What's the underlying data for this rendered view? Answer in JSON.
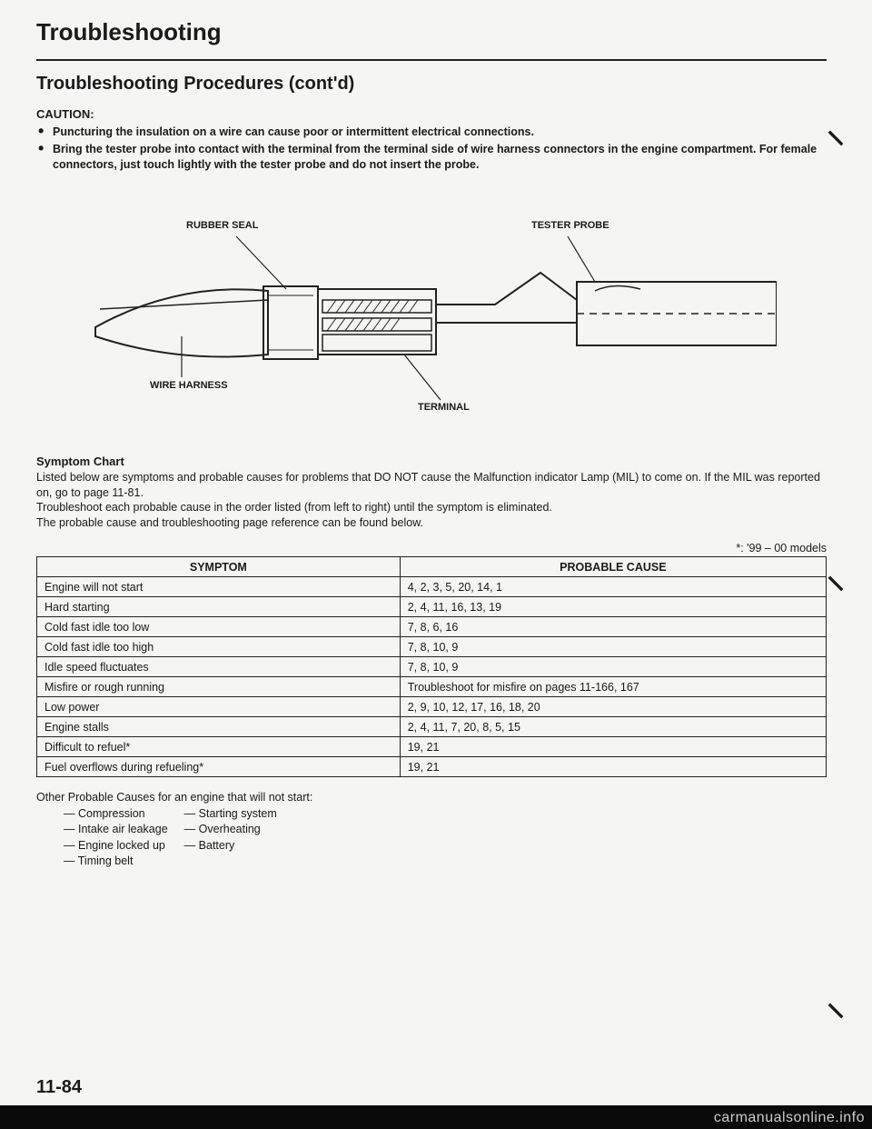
{
  "title": "Troubleshooting",
  "subtitle": "Troubleshooting Procedures (cont'd)",
  "caution_label": "CAUTION:",
  "cautions": [
    "Puncturing the insulation on a wire can cause poor or intermittent electrical connections.",
    "Bring the tester probe into contact with the terminal from the terminal side of wire harness connectors in the engine compartment. For female connectors, just touch lightly with the tester probe and do not insert the probe."
  ],
  "diagram_labels": {
    "rubber_seal": "RUBBER SEAL",
    "tester_probe": "TESTER PROBE",
    "wire_harness": "WIRE HARNESS",
    "terminal": "TERMINAL"
  },
  "symptom_heading": "Symptom Chart",
  "symptom_text": "Listed below are symptoms and probable causes for problems that DO NOT cause the Malfunction indicator Lamp (MIL) to come on. If the MIL was reported on, go to page 11-81.\nTroubleshoot each probable cause in the order listed (from left to right) until the symptom is eliminated.\nThe probable cause and troubleshooting page reference can be found below.",
  "models_note": "*: '99 – 00 models",
  "table": {
    "headers": [
      "SYMPTOM",
      "PROBABLE CAUSE"
    ],
    "rows": [
      [
        "Engine will not start",
        "4, 2, 3, 5, 20, 14, 1"
      ],
      [
        "Hard starting",
        "2, 4, 11, 16, 13, 19"
      ],
      [
        "Cold fast idle too low",
        "7, 8, 6, 16"
      ],
      [
        "Cold fast idle too high",
        "7, 8, 10, 9"
      ],
      [
        "Idle speed fluctuates",
        "7, 8, 10, 9"
      ],
      [
        "Misfire or rough running",
        "Troubleshoot for misfire on pages 11-166, 167"
      ],
      [
        "Low power",
        "2, 9, 10, 12, 17, 16, 18, 20"
      ],
      [
        "Engine stalls",
        "2, 4, 11, 7, 20, 8, 5, 15"
      ],
      [
        "Difficult to refuel*",
        "19, 21"
      ],
      [
        "Fuel overflows during refueling*",
        "19, 21"
      ]
    ]
  },
  "other_causes_heading": "Other Probable Causes for an engine that will not start:",
  "other_causes": {
    "col1": [
      "Compression",
      "Intake air leakage",
      "Engine locked up",
      "Timing belt"
    ],
    "col2": [
      "Starting system",
      "Overheating",
      "Battery"
    ]
  },
  "page_number": "11-84",
  "watermark": "carmanualsonline.info"
}
